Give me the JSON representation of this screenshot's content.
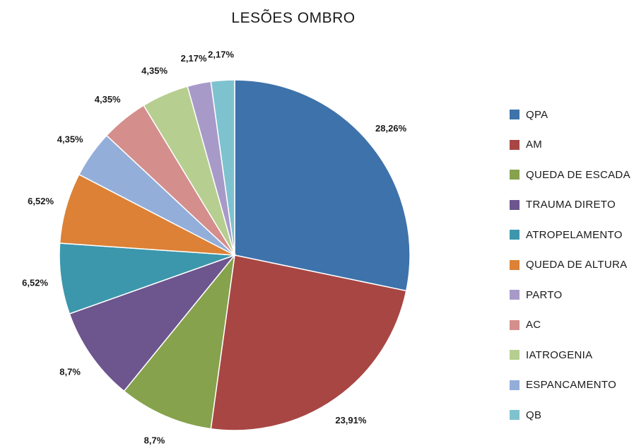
{
  "chart_data": {
    "type": "pie",
    "title": "LESÕES OMBRO",
    "slices": [
      {
        "name": "QPA",
        "value": 28.26,
        "label": "28,26%",
        "color": "#3E72AB"
      },
      {
        "name": "AM",
        "value": 23.91,
        "label": "23,91%",
        "color": "#A84644"
      },
      {
        "name": "QUEDA DE ESCADA",
        "value": 8.7,
        "label": "8,7%",
        "color": "#86A24D"
      },
      {
        "name": "TRAUMA DIRETO",
        "value": 8.7,
        "label": "8,7%",
        "color": "#6D558E"
      },
      {
        "name": "ATROPELAMENTO",
        "value": 6.52,
        "label": "6,52%",
        "color": "#3C97AC"
      },
      {
        "name": "QUEDA DE ALTURA",
        "value": 6.52,
        "label": "6,52%",
        "color": "#DC8135"
      },
      {
        "name": "ESPANCAMENTO",
        "value": 4.35,
        "label": "4,35%",
        "color": "#94AEDA"
      },
      {
        "name": "AC",
        "value": 4.35,
        "label": "4,35%",
        "color": "#D48E8C"
      },
      {
        "name": "IATROGENIA",
        "value": 4.35,
        "label": "4,35%",
        "color": "#B6CE8F"
      },
      {
        "name": "PARTO",
        "value": 2.17,
        "label": "2,17%",
        "color": "#A89AC8"
      },
      {
        "name": "QB",
        "value": 2.17,
        "label": "2,17%",
        "color": "#7EC2CF"
      }
    ],
    "legend": [
      {
        "name": "QPA",
        "color": "#3E72AB"
      },
      {
        "name": "AM",
        "color": "#A84644"
      },
      {
        "name": "QUEDA DE ESCADA",
        "color": "#86A24D"
      },
      {
        "name": "TRAUMA DIRETO",
        "color": "#6D558E"
      },
      {
        "name": "ATROPELAMENTO",
        "color": "#3C97AC"
      },
      {
        "name": "QUEDA DE ALTURA",
        "color": "#DC8135"
      },
      {
        "name": "PARTO",
        "color": "#A89AC8"
      },
      {
        "name": "AC",
        "color": "#D48E8C"
      },
      {
        "name": "IATROGENIA",
        "color": "#B6CE8F"
      },
      {
        "name": "ESPANCAMENTO",
        "color": "#94AEDA"
      },
      {
        "name": "QB",
        "color": "#7EC2CF"
      }
    ],
    "legend_position": "right"
  }
}
